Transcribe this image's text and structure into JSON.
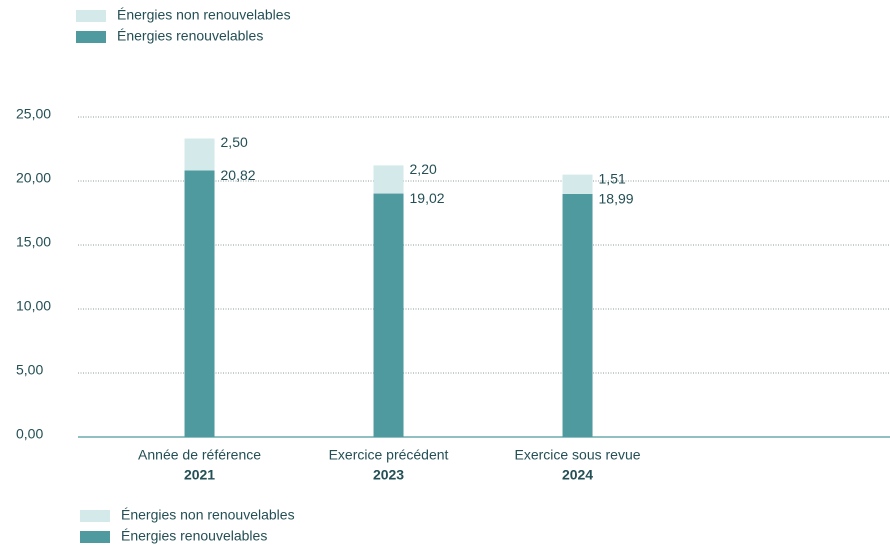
{
  "chart_data": {
    "type": "stacked_bar",
    "categories": [
      "Année de référence",
      "Exercice précédent",
      "Exercice sous revue"
    ],
    "category_years": [
      "2021",
      "2023",
      "2024"
    ],
    "series": [
      {
        "name": "Énergies renouvelables",
        "color": "#4f9a9f",
        "values": [
          20.82,
          19.02,
          18.99
        ],
        "value_labels": [
          "20,82",
          "19,02",
          "18,99"
        ]
      },
      {
        "name": "Énergies non renouvelables",
        "color": "#d4e9ea",
        "values": [
          2.5,
          2.2,
          1.51
        ],
        "value_labels": [
          "2,50",
          "2,20",
          "1,51"
        ]
      }
    ],
    "ylim": [
      0,
      25
    ],
    "yticks": [
      {
        "value": 0,
        "label": "0,00"
      },
      {
        "value": 5,
        "label": "5,00"
      },
      {
        "value": 10,
        "label": "10,00"
      },
      {
        "value": 15,
        "label": "15,00"
      },
      {
        "value": 20,
        "label": "20,00"
      },
      {
        "value": 25,
        "label": "25,00"
      }
    ],
    "grid": true
  }
}
